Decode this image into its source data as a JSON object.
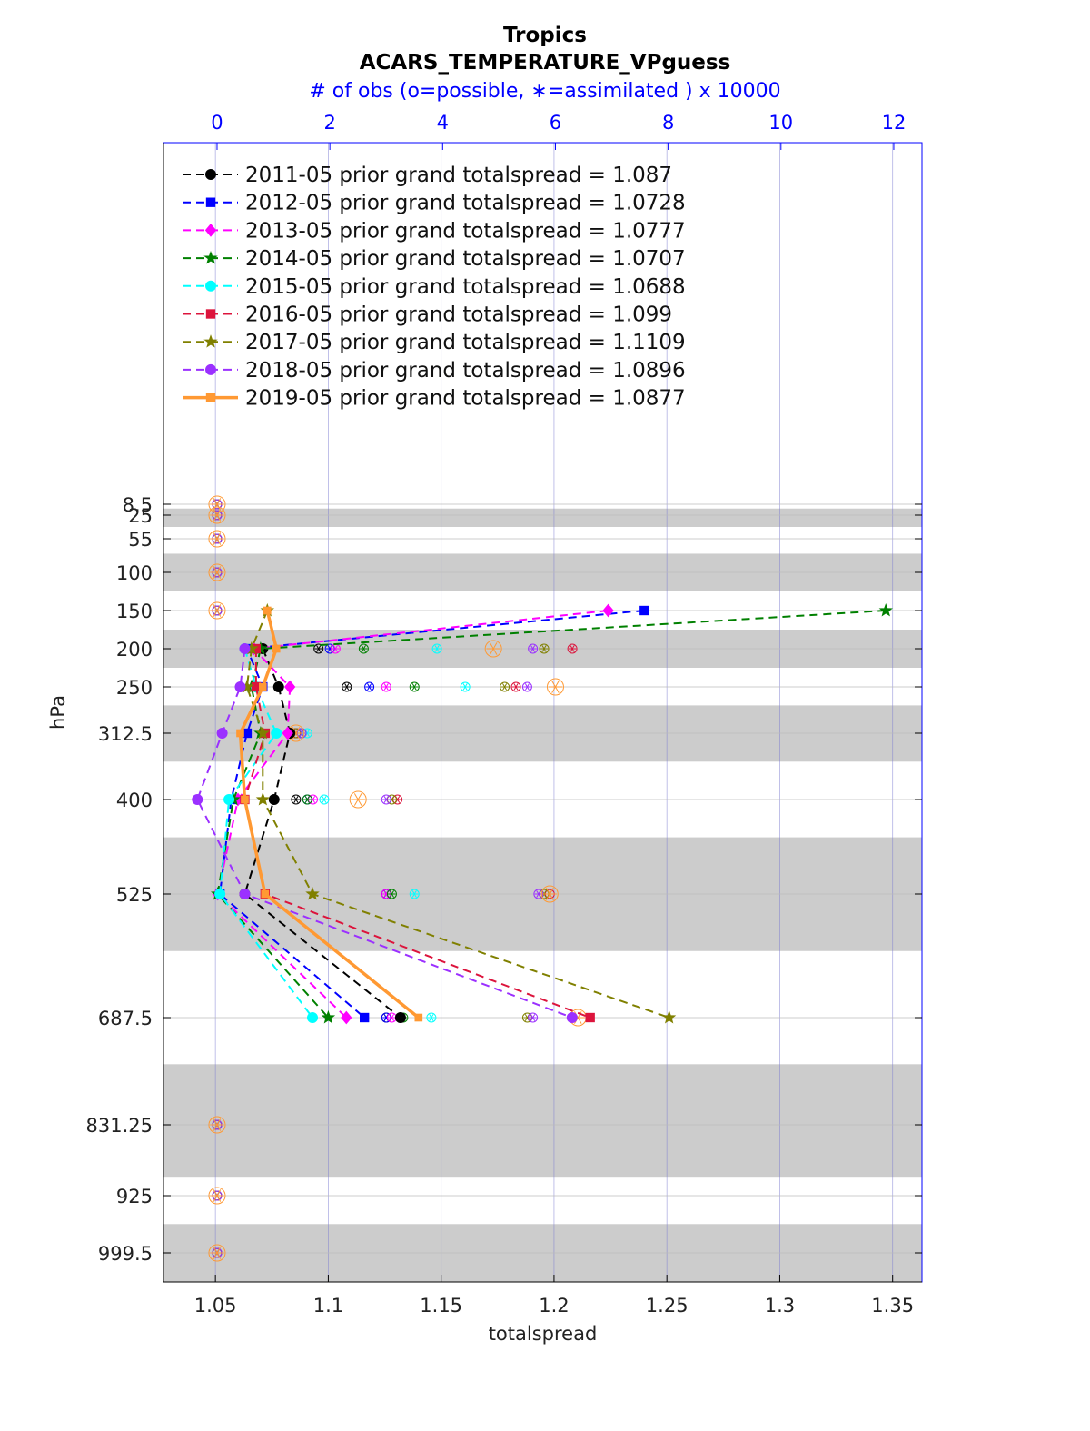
{
  "chart_data": {
    "type": "line",
    "title": "Tropics",
    "subtitle": "ACARS_TEMPERATURE_VPguess",
    "top_axis_label": "# of obs (o=possible, ∗=assimilated ) x 10000",
    "xlabel": "totalspread",
    "ylabel": "hPa",
    "xlim": [
      1.027,
      1.363
    ],
    "x_ticks": [
      1.05,
      1.1,
      1.15,
      1.2,
      1.25,
      1.3,
      1.35
    ],
    "x_tick_labels": [
      "1.05",
      "1.1",
      "1.15",
      "1.2",
      "1.25",
      "1.3",
      "1.35"
    ],
    "top_xlim": [
      -0.95,
      12.5
    ],
    "top_ticks": [
      0,
      2,
      4,
      6,
      8,
      10,
      12
    ],
    "top_tick_labels": [
      "0",
      "2",
      "4",
      "6",
      "8",
      "10",
      "12"
    ],
    "levels": [
      8.5,
      25,
      55,
      100,
      150,
      200,
      250,
      312.5,
      400,
      525,
      687.5,
      831.25,
      925,
      999.5
    ],
    "level_labels": [
      "8.5",
      "25",
      "55",
      "100",
      "150",
      "200",
      "250",
      "312.5",
      "400",
      "525",
      "687.5",
      "831.25",
      "925",
      "999.5"
    ],
    "series_levels": [
      150,
      200,
      250,
      312.5,
      400,
      525,
      687.5
    ],
    "series": [
      {
        "name": "2011-05 prior grand totalspread = 1.087",
        "color": "#000000",
        "marker": "circle",
        "linestyle": "dashed",
        "values": [
          null,
          1.071,
          1.078,
          1.083,
          1.076,
          1.063,
          1.132
        ]
      },
      {
        "name": "2012-05 prior grand totalspread = 1.0728",
        "color": "#0000ff",
        "marker": "square",
        "linestyle": "dashed",
        "values": [
          1.24,
          1.064,
          1.071,
          1.064,
          1.057,
          1.052,
          1.116
        ]
      },
      {
        "name": "2013-05 prior grand totalspread = 1.0777",
        "color": "#ff00ff",
        "marker": "diamond",
        "linestyle": "dashed",
        "values": [
          1.224,
          1.067,
          1.083,
          1.082,
          1.06,
          1.051,
          1.108
        ]
      },
      {
        "name": "2014-05 prior grand totalspread = 1.0707",
        "color": "#008000",
        "marker": "star",
        "linestyle": "dashed",
        "values": [
          1.347,
          1.07,
          1.066,
          1.07,
          1.058,
          1.051,
          1.1
        ]
      },
      {
        "name": "2015-05 prior grand totalspread = 1.0688",
        "color": "#00ffff",
        "marker": "circle",
        "linestyle": "dashed",
        "values": [
          null,
          1.063,
          1.068,
          1.077,
          1.056,
          1.052,
          1.093
        ]
      },
      {
        "name": "2016-05 prior grand totalspread = 1.099",
        "color": "#dc143c",
        "marker": "square",
        "linestyle": "dashed",
        "values": [
          null,
          1.068,
          1.068,
          1.072,
          1.063,
          1.072,
          1.216
        ]
      },
      {
        "name": "2017-05 prior grand totalspread = 1.1109",
        "color": "#808000",
        "marker": "star",
        "linestyle": "dashed",
        "values": [
          1.073,
          1.066,
          1.064,
          1.071,
          1.071,
          1.093,
          1.251
        ]
      },
      {
        "name": "2018-05 prior grand totalspread = 1.0896",
        "color": "#9b30ff",
        "marker": "circle",
        "linestyle": "dashed",
        "values": [
          null,
          1.063,
          1.061,
          1.053,
          1.042,
          1.063,
          1.208
        ]
      },
      {
        "name": "2019-05 prior grand totalspread = 1.0877",
        "color": "#ff9933",
        "marker": "square",
        "linestyle": "solid",
        "values": [
          1.073,
          1.077,
          1.071,
          1.061,
          1.063,
          1.072,
          1.14
        ]
      }
    ],
    "obs_counts": {
      "comment": "number of obs (x 10000) per level, top axis",
      "levels": [
        8.5,
        25,
        55,
        100,
        150,
        200,
        250,
        312.5,
        400,
        525,
        687.5,
        831.25,
        925,
        999.5
      ],
      "series": [
        {
          "color": "#000000",
          "values": [
            0,
            0,
            0,
            0,
            0,
            1.8,
            2.3,
            1.4,
            1.4,
            3.0,
            3.0,
            0,
            0,
            0
          ]
        },
        {
          "color": "#0000ff",
          "values": [
            0,
            0,
            0,
            0,
            0,
            2.0,
            2.7,
            1.5,
            1.6,
            3.0,
            3.0,
            0,
            0,
            0
          ]
        },
        {
          "color": "#ff00ff",
          "values": [
            0,
            0,
            0,
            0,
            0,
            2.1,
            3.0,
            1.4,
            1.7,
            3.0,
            3.1,
            0,
            0,
            0
          ]
        },
        {
          "color": "#008000",
          "values": [
            0,
            0,
            0,
            0,
            0,
            2.6,
            3.5,
            1.5,
            1.6,
            3.1,
            3.3,
            0,
            0,
            0
          ]
        },
        {
          "color": "#00ffff",
          "values": [
            0,
            0,
            0,
            0,
            0,
            3.9,
            4.4,
            1.6,
            1.9,
            3.5,
            3.8,
            0,
            0,
            0
          ]
        },
        {
          "color": "#dc143c",
          "values": [
            0,
            0,
            0,
            0,
            0,
            6.3,
            5.3,
            1.4,
            3.2,
            5.9,
            6.3,
            0,
            0,
            0
          ]
        },
        {
          "color": "#808000",
          "values": [
            0,
            0,
            0,
            0,
            0,
            5.8,
            5.1,
            1.4,
            3.1,
            5.8,
            5.5,
            0,
            0,
            0
          ]
        },
        {
          "color": "#9b30ff",
          "values": [
            0,
            0,
            0,
            0,
            0,
            5.6,
            5.5,
            1.5,
            3.0,
            5.7,
            5.6,
            0,
            0,
            0
          ]
        },
        {
          "color": "#ff9933",
          "values": [
            0,
            0,
            0,
            0,
            0,
            4.9,
            6.0,
            1.4,
            2.5,
            5.9,
            6.4,
            0,
            0,
            0
          ]
        }
      ]
    },
    "shaded_bands": [
      [
        15,
        40
      ],
      [
        75,
        125
      ],
      [
        175,
        225
      ],
      [
        275,
        350
      ],
      [
        450,
        600
      ],
      [
        750,
        900
      ],
      [
        962,
        1050
      ]
    ],
    "grid": true,
    "legend_position": "top-left"
  }
}
